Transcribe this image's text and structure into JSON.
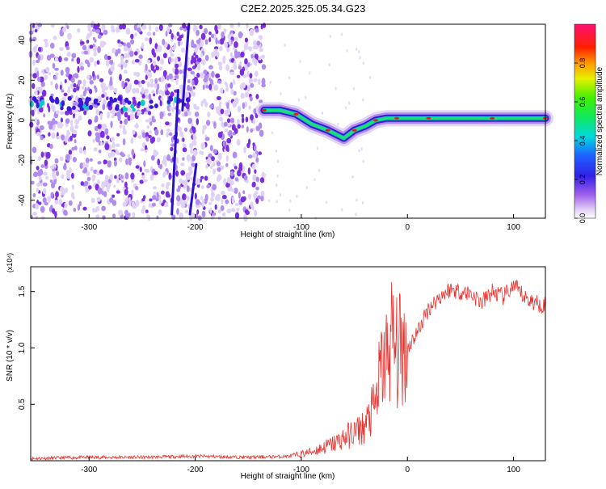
{
  "title": "C2E2.2025.325.05.34.G23",
  "colors": {
    "snr_line": "#e8322e",
    "ridge": "#20e070",
    "ridge_peak": "#e02020",
    "blob": "#7a2ee0"
  },
  "chart_data": [
    {
      "type": "heatmap",
      "title": "C2E2.2025.325.05.34.G23",
      "xlabel": "Height of straight line (km)",
      "ylabel": "Frequency (Hz)",
      "xlim": [
        -355,
        130
      ],
      "ylim": [
        -49,
        48
      ],
      "xticks": [
        -300,
        -200,
        -100,
        0,
        100
      ],
      "yticks": [
        -40,
        -20,
        0,
        20,
        40
      ],
      "colorbar": {
        "label": "Normalized spectral amplitude",
        "range": [
          0,
          1
        ],
        "ticks": [
          0.0,
          0.2,
          0.4,
          0.6,
          0.8
        ]
      },
      "ridge": {
        "x": [
          -135,
          -120,
          -105,
          -90,
          -75,
          -60,
          -50,
          -40,
          -30,
          -20,
          -10,
          0,
          20,
          50,
          80,
          110,
          130
        ],
        "y": [
          5,
          5,
          3,
          -2,
          -5,
          -9,
          -5,
          -3,
          0,
          1,
          1,
          1,
          1,
          1,
          1,
          1,
          1
        ]
      }
    },
    {
      "type": "line",
      "xlabel": "Height of straight line (km)",
      "ylabel": "SNR (10 * v/v)",
      "scale_label": "(x10⁴)",
      "xlim": [
        -355,
        130
      ],
      "ylim": [
        0,
        1.72
      ],
      "xticks": [
        -300,
        -200,
        -100,
        0,
        100
      ],
      "yticks": [
        0.5,
        1.0,
        1.5
      ],
      "series": [
        {
          "x": [
            -355,
            -300,
            -250,
            -200,
            -150,
            -110,
            -90,
            -70,
            -60,
            -50,
            -40,
            -30,
            -25,
            -20,
            -15,
            -10,
            -5,
            0,
            10,
            20,
            30,
            40,
            50,
            60,
            70,
            80,
            90,
            100,
            110,
            120,
            130
          ],
          "values": [
            0.02,
            0.03,
            0.03,
            0.04,
            0.03,
            0.04,
            0.08,
            0.15,
            0.2,
            0.25,
            0.3,
            0.5,
            0.8,
            0.9,
            1.1,
            0.95,
            1.0,
            1.0,
            1.15,
            1.35,
            1.45,
            1.52,
            1.5,
            1.48,
            1.4,
            1.5,
            1.45,
            1.55,
            1.45,
            1.4,
            1.38
          ]
        }
      ]
    }
  ]
}
